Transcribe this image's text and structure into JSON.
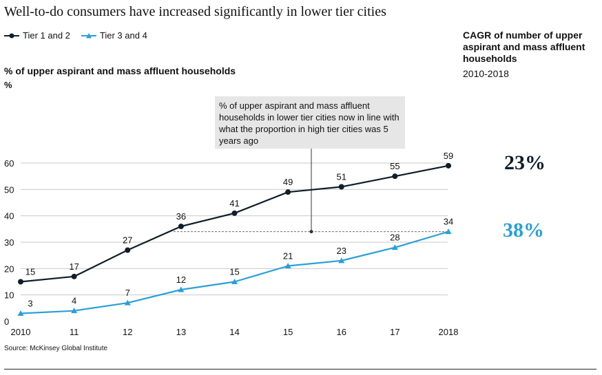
{
  "title": "Well-to-do consumers have increased significantly in lower tier cities",
  "legend": [
    {
      "label": "Tier 1 and 2",
      "color": "#0f1e2c",
      "marker": "circle"
    },
    {
      "label": "Tier 3 and 4",
      "color": "#2a9fd8",
      "marker": "triangle"
    }
  ],
  "ylabel": "% of upper aspirant and mass affluent households",
  "yunit": "%",
  "cagr": {
    "title": "CAGR of number of upper aspirant and mass affluent households",
    "years": "2010-2018",
    "tier12": "23%",
    "tier34": "38%"
  },
  "annotation": "% of upper aspirant and mass affluent households in lower tier cities now in line with what the proportion in high tier cities was 5 years ago",
  "source": "Source: McKinsey Global Institute",
  "chart_data": {
    "type": "line",
    "categories": [
      "2010",
      "11",
      "12",
      "13",
      "14",
      "15",
      "16",
      "17",
      "2018"
    ],
    "ylim": [
      0,
      60
    ],
    "yticks": [
      0,
      10,
      20,
      30,
      40,
      50,
      60
    ],
    "grid": true,
    "series": [
      {
        "name": "Tier 1 and 2",
        "color": "#0f1e2c",
        "marker": "circle",
        "values": [
          15,
          17,
          27,
          36,
          41,
          49,
          51,
          55,
          59
        ]
      },
      {
        "name": "Tier 3 and 4",
        "color": "#2a9fd8",
        "marker": "triangle",
        "values": [
          3,
          4,
          7,
          12,
          15,
          21,
          23,
          28,
          34
        ]
      }
    ]
  }
}
